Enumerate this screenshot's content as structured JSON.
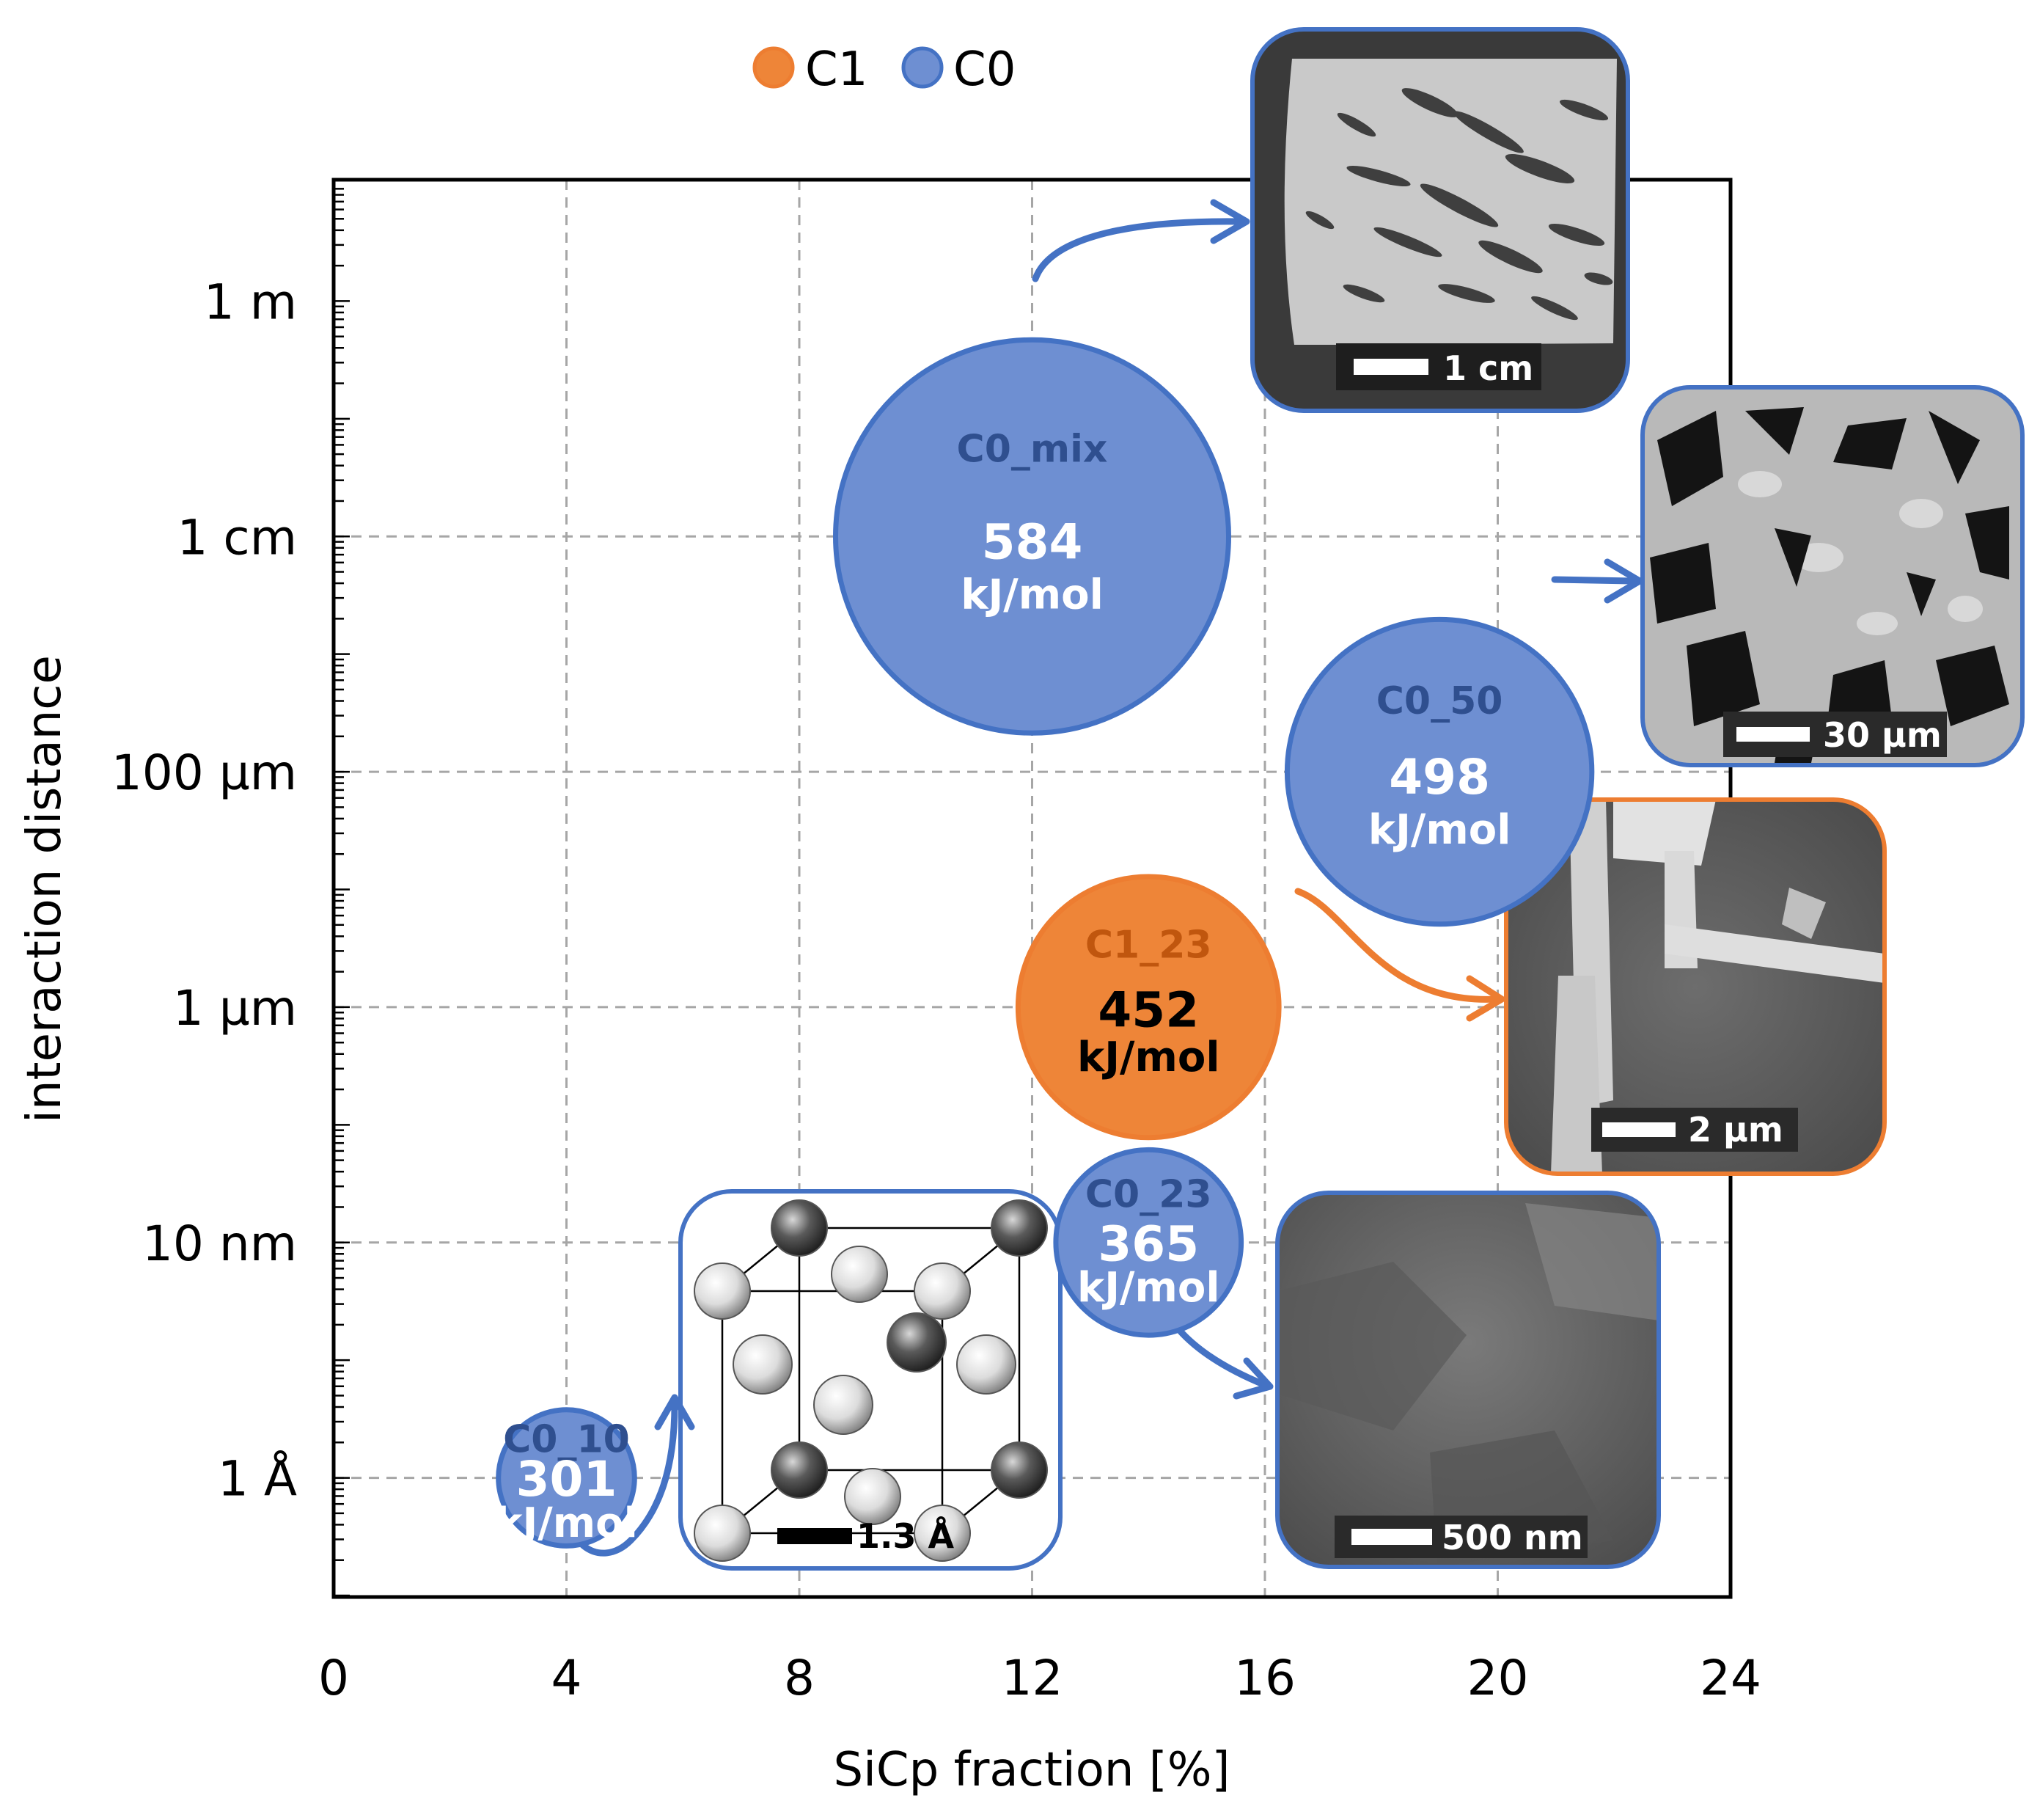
{
  "chart_data": {
    "type": "scatter",
    "subtype": "bubble",
    "xlabel": "SiCp fraction [%]",
    "ylabel": "interaction distance",
    "xlim": [
      0,
      24
    ],
    "x_ticks": [
      "0",
      "4",
      "8",
      "12",
      "16",
      "20",
      "24"
    ],
    "y_scale": "log",
    "ylim_m": [
      1e-11,
      10
    ],
    "y_ticks": [
      {
        "label": "1 m",
        "value_m": 1
      },
      {
        "label": "1 cm",
        "value_m": 0.01
      },
      {
        "label": "100 µm",
        "value_m": 0.0001
      },
      {
        "label": "1 µm",
        "value_m": 1e-06
      },
      {
        "label": "10 nm",
        "value_m": 1e-08
      },
      {
        "label": "1 Å",
        "value_m": 1e-10
      }
    ],
    "grid": true,
    "legend_position": "top-center",
    "legend": [
      {
        "name": "C1",
        "color": "#EE8538"
      },
      {
        "name": "C0",
        "color": "#6E8FD2"
      }
    ],
    "series": [
      {
        "name": "C0",
        "color": "#6E8FD2",
        "edge_color": "#4472C4",
        "points": [
          {
            "label": "C0_mix",
            "x": 12,
            "y_m": 0.01,
            "value": "584",
            "unit": "kJ/mol",
            "size": 584
          },
          {
            "label": "C0_50",
            "x": 19,
            "y_m": 0.0001,
            "value": "498",
            "unit": "kJ/mol",
            "size": 498
          },
          {
            "label": "C0_23",
            "x": 14,
            "y_m": 1e-08,
            "value": "365",
            "unit": "kJ/mol",
            "size": 365
          },
          {
            "label": "C0_10",
            "x": 4,
            "y_m": 1e-10,
            "value": "301",
            "unit": "kJ/mol",
            "size": 301
          }
        ]
      },
      {
        "name": "C1",
        "color": "#EE8538",
        "edge_color": "#ED7D31",
        "points": [
          {
            "label": "C1_23",
            "x": 14,
            "y_m": 1e-06,
            "value": "452",
            "unit": "kJ/mol",
            "size": 452
          }
        ]
      }
    ],
    "insets": [
      {
        "name": "macro-photo",
        "scale_bar": "1 cm",
        "linked_to": "C0_mix"
      },
      {
        "name": "sem-50",
        "scale_bar": "30 µm",
        "linked_to": "C0_50"
      },
      {
        "name": "sem-c1",
        "scale_bar": "2 µm",
        "linked_to": "C1_23"
      },
      {
        "name": "sem-c0-23",
        "scale_bar": "500 nm",
        "linked_to": "C0_23"
      },
      {
        "name": "crystal-lattice",
        "scale_bar": "1.3 Å",
        "linked_to": "C0_10"
      }
    ]
  },
  "colors": {
    "c0_fill": "#6E8FD2",
    "c0_edge": "#4472C4",
    "c0_name": "#2F4F8F",
    "c1_fill": "#EE8538",
    "c1_edge": "#ED7D31",
    "c1_name": "#C0560E",
    "grid": "#A6A6A6"
  }
}
